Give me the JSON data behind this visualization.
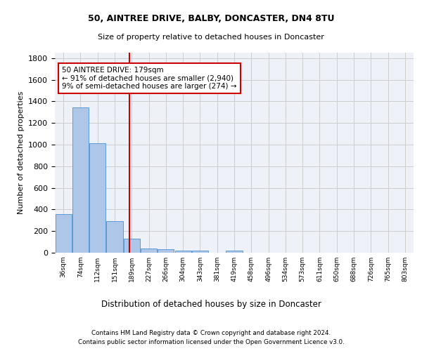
{
  "title1": "50, AINTREE DRIVE, BALBY, DONCASTER, DN4 8TU",
  "title2": "Size of property relative to detached houses in Doncaster",
  "xlabel": "Distribution of detached houses by size in Doncaster",
  "ylabel": "Number of detached properties",
  "footnote1": "Contains HM Land Registry data © Crown copyright and database right 2024.",
  "footnote2": "Contains public sector information licensed under the Open Government Licence v3.0.",
  "bin_labels": [
    "36sqm",
    "74sqm",
    "112sqm",
    "151sqm",
    "189sqm",
    "227sqm",
    "266sqm",
    "304sqm",
    "343sqm",
    "381sqm",
    "419sqm",
    "458sqm",
    "496sqm",
    "534sqm",
    "573sqm",
    "611sqm",
    "650sqm",
    "688sqm",
    "726sqm",
    "765sqm",
    "803sqm"
  ],
  "bar_heights": [
    355,
    1345,
    1010,
    290,
    130,
    42,
    35,
    22,
    17,
    0,
    20,
    0,
    0,
    0,
    0,
    0,
    0,
    0,
    0,
    0,
    0
  ],
  "bar_color": "#aec6e8",
  "bar_edgecolor": "#5b9bd5",
  "vline_bin_index": 3.87,
  "vline_color": "#cc0000",
  "annotation_text": "50 AINTREE DRIVE: 179sqm\n← 91% of detached houses are smaller (2,940)\n9% of semi-detached houses are larger (274) →",
  "annotation_box_color": "#cc0000",
  "ylim": [
    0,
    1850
  ],
  "yticks": [
    0,
    200,
    400,
    600,
    800,
    1000,
    1200,
    1400,
    1600,
    1800
  ],
  "background_color": "#ffffff",
  "grid_color": "#cccccc",
  "ax_facecolor": "#eef2f8"
}
